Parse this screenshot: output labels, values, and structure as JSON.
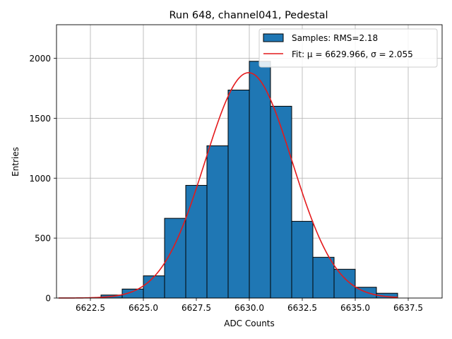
{
  "chart_data": {
    "type": "bar",
    "title": "Run 648, channel041, Pedestal",
    "xlabel": "ADC Counts",
    "ylabel": "Entries",
    "xlim": [
      6620.9,
      6639.1
    ],
    "ylim": [
      0,
      2280
    ],
    "grid": true,
    "legend_position": "top-right",
    "x_ticks": [
      6622.5,
      6625.0,
      6627.5,
      6630.0,
      6632.5,
      6635.0,
      6637.5
    ],
    "x_tick_labels": [
      "6622.5",
      "6625.0",
      "6627.5",
      "6630.0",
      "6632.5",
      "6635.0",
      "6637.5"
    ],
    "y_ticks": [
      0,
      500,
      1000,
      1500,
      2000
    ],
    "y_tick_labels": [
      "0",
      "500",
      "1000",
      "1500",
      "2000"
    ],
    "bins": [
      {
        "x0": 6623.0,
        "x1": 6624.0,
        "value": 25
      },
      {
        "x0": 6624.0,
        "x1": 6625.0,
        "value": 75
      },
      {
        "x0": 6625.0,
        "x1": 6626.0,
        "value": 185
      },
      {
        "x0": 6626.0,
        "x1": 6627.0,
        "value": 665
      },
      {
        "x0": 6627.0,
        "x1": 6628.0,
        "value": 940
      },
      {
        "x0": 6628.0,
        "x1": 6629.0,
        "value": 1270
      },
      {
        "x0": 6629.0,
        "x1": 6630.0,
        "value": 1735
      },
      {
        "x0": 6630.0,
        "x1": 6631.0,
        "value": 1975
      },
      {
        "x0": 6631.0,
        "x1": 6632.0,
        "value": 1600
      },
      {
        "x0": 6632.0,
        "x1": 6633.0,
        "value": 640
      },
      {
        "x0": 6633.0,
        "x1": 6634.0,
        "value": 340
      },
      {
        "x0": 6634.0,
        "x1": 6635.0,
        "value": 240
      },
      {
        "x0": 6635.0,
        "x1": 6636.0,
        "value": 90
      },
      {
        "x0": 6636.0,
        "x1": 6637.0,
        "value": 40
      }
    ],
    "fit": {
      "type": "gaussian",
      "mu": 6629.966,
      "sigma": 2.055,
      "amplitude": 1880,
      "x_range": [
        6621.0,
        6637.0
      ]
    },
    "legend": [
      {
        "label": "Samples: RMS=2.18",
        "kind": "patch",
        "color": "#1f77b4"
      },
      {
        "label": "Fit: μ = 6629.966, σ = 2.055",
        "kind": "line",
        "color": "#e41a1c"
      }
    ],
    "colors": {
      "bars": "#1f77b4",
      "fit": "#e41a1c",
      "grid": "#b0b0b0"
    }
  }
}
